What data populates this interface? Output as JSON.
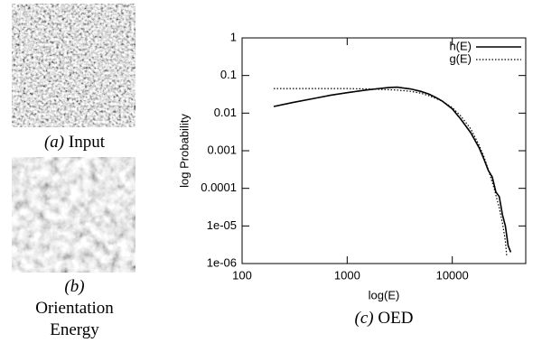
{
  "panels": [
    {
      "marker": "(a)",
      "caption": "Input"
    },
    {
      "marker": "(b)",
      "caption": "Orientation Energy"
    }
  ],
  "chart_data": {
    "type": "line",
    "caption_marker": "(c)",
    "caption": "OED",
    "x_label": "log(E)",
    "y_label": "log Probability",
    "xlog": true,
    "ylog": true,
    "xlim": [
      100,
      50000
    ],
    "ylim": [
      1e-06,
      1
    ],
    "xticks": [
      100,
      1000,
      10000
    ],
    "yticks": [
      1,
      0.1,
      0.01,
      0.001,
      0.0001,
      {
        "value": 1e-05,
        "label": "1e-05"
      },
      {
        "value": 1e-06,
        "label": "1e-06"
      }
    ],
    "legend": "top-right",
    "series": [
      {
        "name": "h(E)",
        "color": "#000000",
        "dash": "solid",
        "x": [
          200,
          300,
          500,
          700,
          1000,
          1500,
          2000,
          2500,
          3000,
          3500,
          4000,
          5000,
          6000,
          7000,
          8000,
          10000,
          12000,
          15000,
          18000,
          20000,
          22000,
          24000,
          26000,
          28000,
          30000,
          32000,
          34000,
          36000
        ],
        "values": [
          0.015,
          0.019,
          0.025,
          0.03,
          0.035,
          0.041,
          0.045,
          0.048,
          0.049,
          0.046,
          0.044,
          0.038,
          0.032,
          0.026,
          0.021,
          0.013,
          0.007,
          0.003,
          0.0012,
          0.0006,
          0.0003,
          0.0002,
          8e-05,
          6e-05,
          2e-05,
          1e-05,
          3e-06,
          2e-06
        ]
      },
      {
        "name": "g(E)",
        "color": "#000000",
        "dash": "dotted",
        "x": [
          200,
          500,
          1000,
          1500,
          2000,
          3000,
          4000,
          5000,
          6000,
          8000,
          10000,
          12000,
          15000,
          18000,
          20000,
          22000,
          25000,
          28000,
          30000,
          32000,
          33000
        ],
        "values": [
          0.045,
          0.045,
          0.045,
          0.044,
          0.043,
          0.041,
          0.038,
          0.034,
          0.029,
          0.021,
          0.014,
          0.0085,
          0.0038,
          0.0014,
          0.0007,
          0.00032,
          0.0001,
          3e-05,
          1.2e-05,
          4e-06,
          1.5e-06
        ]
      }
    ]
  }
}
